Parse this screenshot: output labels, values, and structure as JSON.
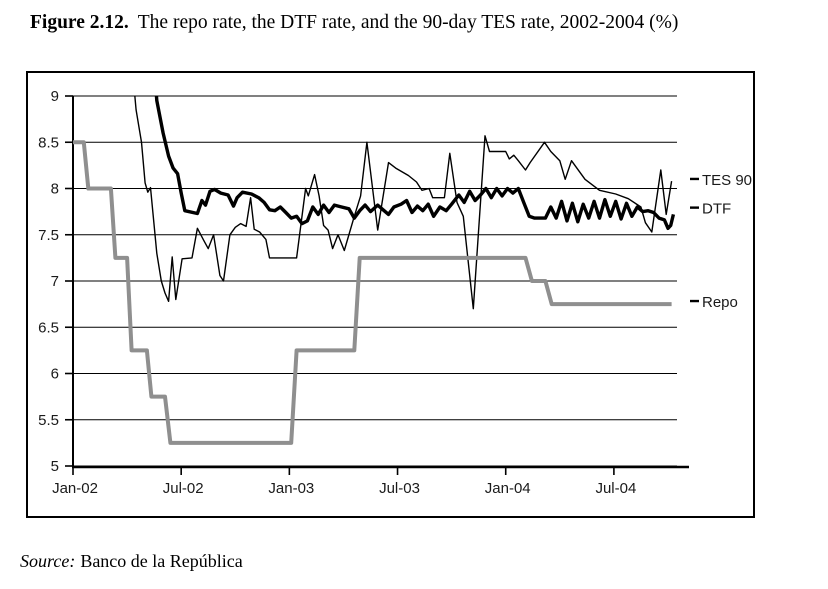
{
  "title": {
    "label": "Figure 2.12.",
    "text": "The repo rate, the DTF rate, and the 90-day TES rate, 2002-2004 (%)"
  },
  "source": {
    "prefix": "Source:",
    "text": "Banco de la República"
  },
  "chart_data": {
    "type": "line",
    "title": "The repo rate, the DTF rate, and the 90-day TES rate, 2002-2004 (%)",
    "xlabel": "",
    "ylabel": "",
    "x_unit": "months since Jan-2002",
    "xlim": [
      0,
      33.5
    ],
    "ylim": [
      5,
      9
    ],
    "grid": "horizontal",
    "legend_position": "right",
    "x_ticks": [
      {
        "m": 0,
        "label": "Jan-02"
      },
      {
        "m": 6,
        "label": "Jul-02"
      },
      {
        "m": 12,
        "label": "Jan-03"
      },
      {
        "m": 18,
        "label": "Jul-03"
      },
      {
        "m": 24,
        "label": "Jan-04"
      },
      {
        "m": 30,
        "label": "Jul-04"
      }
    ],
    "y_ticks": [
      {
        "v": 9,
        "label": "9"
      },
      {
        "v": 8.5,
        "label": "8.5"
      },
      {
        "v": 8,
        "label": "8"
      },
      {
        "v": 7.5,
        "label": "7.5"
      },
      {
        "v": 7,
        "label": "7"
      },
      {
        "v": 6.5,
        "label": "6.5"
      },
      {
        "v": 6,
        "label": "6"
      },
      {
        "v": 5.5,
        "label": "5.5"
      },
      {
        "v": 5,
        "label": "5"
      }
    ],
    "legend": [
      {
        "id": "tes90",
        "name": "TES 90",
        "y": 8.06
      },
      {
        "id": "dtf",
        "name": "DTF",
        "y": 7.75
      },
      {
        "id": "repo",
        "name": "Repo",
        "y": 6.74
      }
    ],
    "series": [
      {
        "id": "tes90",
        "name": "TES 90",
        "color": "#000000",
        "width": 1.4,
        "points": [
          [
            3.15,
            9.6
          ],
          [
            3.5,
            8.85
          ],
          [
            3.8,
            8.5
          ],
          [
            4.0,
            8.06
          ],
          [
            4.15,
            7.96
          ],
          [
            4.3,
            8.01
          ],
          [
            4.65,
            7.3
          ],
          [
            4.9,
            7.0
          ],
          [
            5.1,
            6.87
          ],
          [
            5.3,
            6.78
          ],
          [
            5.5,
            7.26
          ],
          [
            5.7,
            6.8
          ],
          [
            6.05,
            7.24
          ],
          [
            6.6,
            7.25
          ],
          [
            6.9,
            7.57
          ],
          [
            7.25,
            7.44
          ],
          [
            7.5,
            7.35
          ],
          [
            7.8,
            7.5
          ],
          [
            8.15,
            7.06
          ],
          [
            8.35,
            7.0
          ],
          [
            8.7,
            7.5
          ],
          [
            9.0,
            7.58
          ],
          [
            9.3,
            7.62
          ],
          [
            9.6,
            7.59
          ],
          [
            9.85,
            7.9
          ],
          [
            10.05,
            7.56
          ],
          [
            10.35,
            7.53
          ],
          [
            10.7,
            7.45
          ],
          [
            10.9,
            7.25
          ],
          [
            12.4,
            7.25
          ],
          [
            12.9,
            8.0
          ],
          [
            13.05,
            7.92
          ],
          [
            13.4,
            8.15
          ],
          [
            13.65,
            7.92
          ],
          [
            13.9,
            7.6
          ],
          [
            14.15,
            7.55
          ],
          [
            14.4,
            7.35
          ],
          [
            14.7,
            7.5
          ],
          [
            15.05,
            7.33
          ],
          [
            15.6,
            7.7
          ],
          [
            15.95,
            7.92
          ],
          [
            16.3,
            8.5
          ],
          [
            16.9,
            7.55
          ],
          [
            17.5,
            8.28
          ],
          [
            17.9,
            8.22
          ],
          [
            18.6,
            8.14
          ],
          [
            19.05,
            8.07
          ],
          [
            19.35,
            7.98
          ],
          [
            19.75,
            8.0
          ],
          [
            19.95,
            7.9
          ],
          [
            20.6,
            7.9
          ],
          [
            20.9,
            8.38
          ],
          [
            21.3,
            7.85
          ],
          [
            21.65,
            7.7
          ],
          [
            22.2,
            6.7
          ],
          [
            22.85,
            8.57
          ],
          [
            23.1,
            8.4
          ],
          [
            24.0,
            8.4
          ],
          [
            24.2,
            8.32
          ],
          [
            24.45,
            8.36
          ],
          [
            24.7,
            8.3
          ],
          [
            25.1,
            8.2
          ],
          [
            25.35,
            8.28
          ],
          [
            26.15,
            8.5
          ],
          [
            26.5,
            8.4
          ],
          [
            27.0,
            8.3
          ],
          [
            27.3,
            8.1
          ],
          [
            27.65,
            8.3
          ],
          [
            28.4,
            8.1
          ],
          [
            29.2,
            7.98
          ],
          [
            30.1,
            7.94
          ],
          [
            30.8,
            7.89
          ],
          [
            31.5,
            7.8
          ],
          [
            31.75,
            7.63
          ],
          [
            32.1,
            7.53
          ],
          [
            32.6,
            8.2
          ],
          [
            32.9,
            7.72
          ],
          [
            33.2,
            8.08
          ]
        ]
      },
      {
        "id": "dtf",
        "name": "DTF",
        "color": "#000000",
        "width": 3.4,
        "points": [
          [
            4.4,
            9.6
          ],
          [
            4.65,
            8.95
          ],
          [
            5.0,
            8.6
          ],
          [
            5.3,
            8.35
          ],
          [
            5.55,
            8.22
          ],
          [
            5.8,
            8.16
          ],
          [
            6.0,
            7.95
          ],
          [
            6.2,
            7.76
          ],
          [
            6.9,
            7.73
          ],
          [
            7.15,
            7.87
          ],
          [
            7.35,
            7.82
          ],
          [
            7.6,
            7.97
          ],
          [
            7.85,
            7.99
          ],
          [
            8.2,
            7.95
          ],
          [
            8.6,
            7.93
          ],
          [
            8.9,
            7.81
          ],
          [
            9.1,
            7.9
          ],
          [
            9.4,
            7.96
          ],
          [
            9.9,
            7.94
          ],
          [
            10.3,
            7.9
          ],
          [
            10.6,
            7.85
          ],
          [
            10.9,
            7.77
          ],
          [
            11.2,
            7.76
          ],
          [
            11.5,
            7.8
          ],
          [
            11.8,
            7.74
          ],
          [
            12.1,
            7.68
          ],
          [
            12.4,
            7.7
          ],
          [
            12.7,
            7.62
          ],
          [
            13.0,
            7.65
          ],
          [
            13.3,
            7.8
          ],
          [
            13.6,
            7.72
          ],
          [
            13.9,
            7.82
          ],
          [
            14.2,
            7.74
          ],
          [
            14.5,
            7.82
          ],
          [
            14.9,
            7.8
          ],
          [
            15.3,
            7.78
          ],
          [
            15.6,
            7.68
          ],
          [
            15.9,
            7.76
          ],
          [
            16.2,
            7.82
          ],
          [
            16.5,
            7.75
          ],
          [
            16.9,
            7.82
          ],
          [
            17.2,
            7.77
          ],
          [
            17.5,
            7.72
          ],
          [
            17.8,
            7.8
          ],
          [
            18.2,
            7.83
          ],
          [
            18.5,
            7.87
          ],
          [
            18.8,
            7.74
          ],
          [
            19.1,
            7.81
          ],
          [
            19.4,
            7.76
          ],
          [
            19.7,
            7.83
          ],
          [
            20.0,
            7.7
          ],
          [
            20.35,
            7.8
          ],
          [
            20.7,
            7.76
          ],
          [
            21.0,
            7.83
          ],
          [
            21.4,
            7.93
          ],
          [
            21.7,
            7.85
          ],
          [
            22.0,
            7.97
          ],
          [
            22.3,
            7.87
          ],
          [
            22.6,
            7.93
          ],
          [
            22.9,
            8.0
          ],
          [
            23.2,
            7.9
          ],
          [
            23.5,
            8.0
          ],
          [
            23.8,
            7.92
          ],
          [
            24.1,
            8.0
          ],
          [
            24.4,
            7.95
          ],
          [
            24.7,
            8.0
          ],
          [
            25.0,
            7.85
          ],
          [
            25.3,
            7.7
          ],
          [
            25.6,
            7.68
          ],
          [
            26.2,
            7.68
          ],
          [
            26.5,
            7.8
          ],
          [
            26.8,
            7.68
          ],
          [
            27.1,
            7.86
          ],
          [
            27.4,
            7.65
          ],
          [
            27.7,
            7.84
          ],
          [
            28.0,
            7.64
          ],
          [
            28.3,
            7.83
          ],
          [
            28.6,
            7.68
          ],
          [
            28.9,
            7.86
          ],
          [
            29.2,
            7.68
          ],
          [
            29.5,
            7.88
          ],
          [
            29.8,
            7.7
          ],
          [
            30.1,
            7.86
          ],
          [
            30.4,
            7.67
          ],
          [
            30.7,
            7.84
          ],
          [
            31.0,
            7.7
          ],
          [
            31.3,
            7.8
          ],
          [
            31.6,
            7.75
          ],
          [
            31.9,
            7.76
          ],
          [
            32.2,
            7.74
          ],
          [
            32.5,
            7.68
          ],
          [
            32.8,
            7.66
          ],
          [
            33.0,
            7.57
          ],
          [
            33.15,
            7.6
          ],
          [
            33.3,
            7.72
          ]
        ]
      },
      {
        "id": "repo",
        "name": "Repo",
        "color": "#8f8f8f",
        "width": 4,
        "points": [
          [
            0,
            8.5
          ],
          [
            0.6,
            8.5
          ],
          [
            0.85,
            8.0
          ],
          [
            2.1,
            8.0
          ],
          [
            2.35,
            7.25
          ],
          [
            3.0,
            7.25
          ],
          [
            3.25,
            6.25
          ],
          [
            4.1,
            6.25
          ],
          [
            4.35,
            5.75
          ],
          [
            5.1,
            5.75
          ],
          [
            5.4,
            5.25
          ],
          [
            12.1,
            5.25
          ],
          [
            12.4,
            6.25
          ],
          [
            15.6,
            6.25
          ],
          [
            15.9,
            7.25
          ],
          [
            25.1,
            7.25
          ],
          [
            25.45,
            7.0
          ],
          [
            26.2,
            7.0
          ],
          [
            26.55,
            6.75
          ],
          [
            33.2,
            6.75
          ]
        ]
      }
    ]
  }
}
